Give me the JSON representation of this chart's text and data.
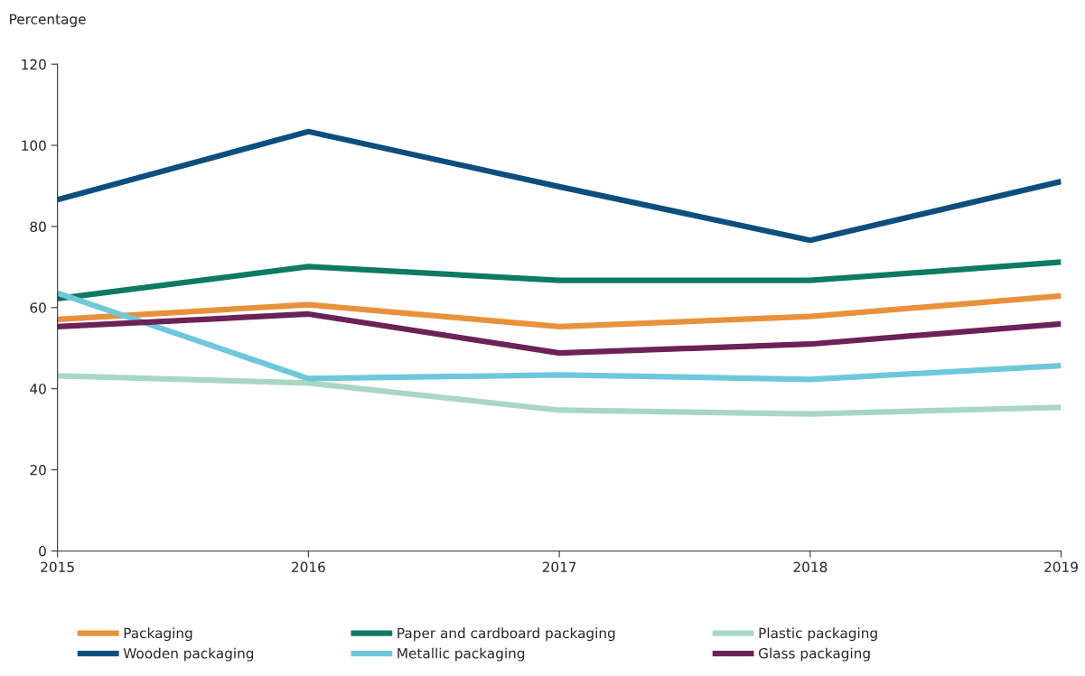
{
  "chart_data": {
    "type": "line",
    "ylabel": "Percentage",
    "x": [
      2015,
      2016,
      2017,
      2018,
      2019
    ],
    "series": [
      {
        "name": "Packaging",
        "color": "#e8913a",
        "values": [
          57.1,
          60.7,
          55.3,
          57.8,
          62.9
        ]
      },
      {
        "name": "Paper and cardboard packaging",
        "color": "#0f7a64",
        "values": [
          62.2,
          70.1,
          66.7,
          66.7,
          71.2
        ]
      },
      {
        "name": "Plastic packaging",
        "color": "#a8d8c4",
        "values": [
          43.2,
          41.4,
          34.7,
          33.8,
          35.4
        ]
      },
      {
        "name": "Wooden packaging",
        "color": "#0c4f7f",
        "values": [
          86.6,
          103.4,
          89.8,
          76.6,
          91.1
        ]
      },
      {
        "name": "Metallic packaging",
        "color": "#6ec8db",
        "values": [
          63.6,
          42.5,
          43.4,
          42.3,
          45.7
        ]
      },
      {
        "name": "Glass packaging",
        "color": "#6b2258",
        "values": [
          55.3,
          58.4,
          48.8,
          51.0,
          56.0
        ]
      }
    ],
    "xlim": [
      2015,
      2019
    ],
    "xticks": [
      2015,
      2016,
      2017,
      2018,
      2019
    ],
    "ylim": [
      0,
      120
    ],
    "yticks": [
      0,
      20,
      40,
      60,
      80,
      100,
      120
    ],
    "grid": false,
    "legend": "bottom",
    "marker": "none",
    "line_style": "solid"
  }
}
